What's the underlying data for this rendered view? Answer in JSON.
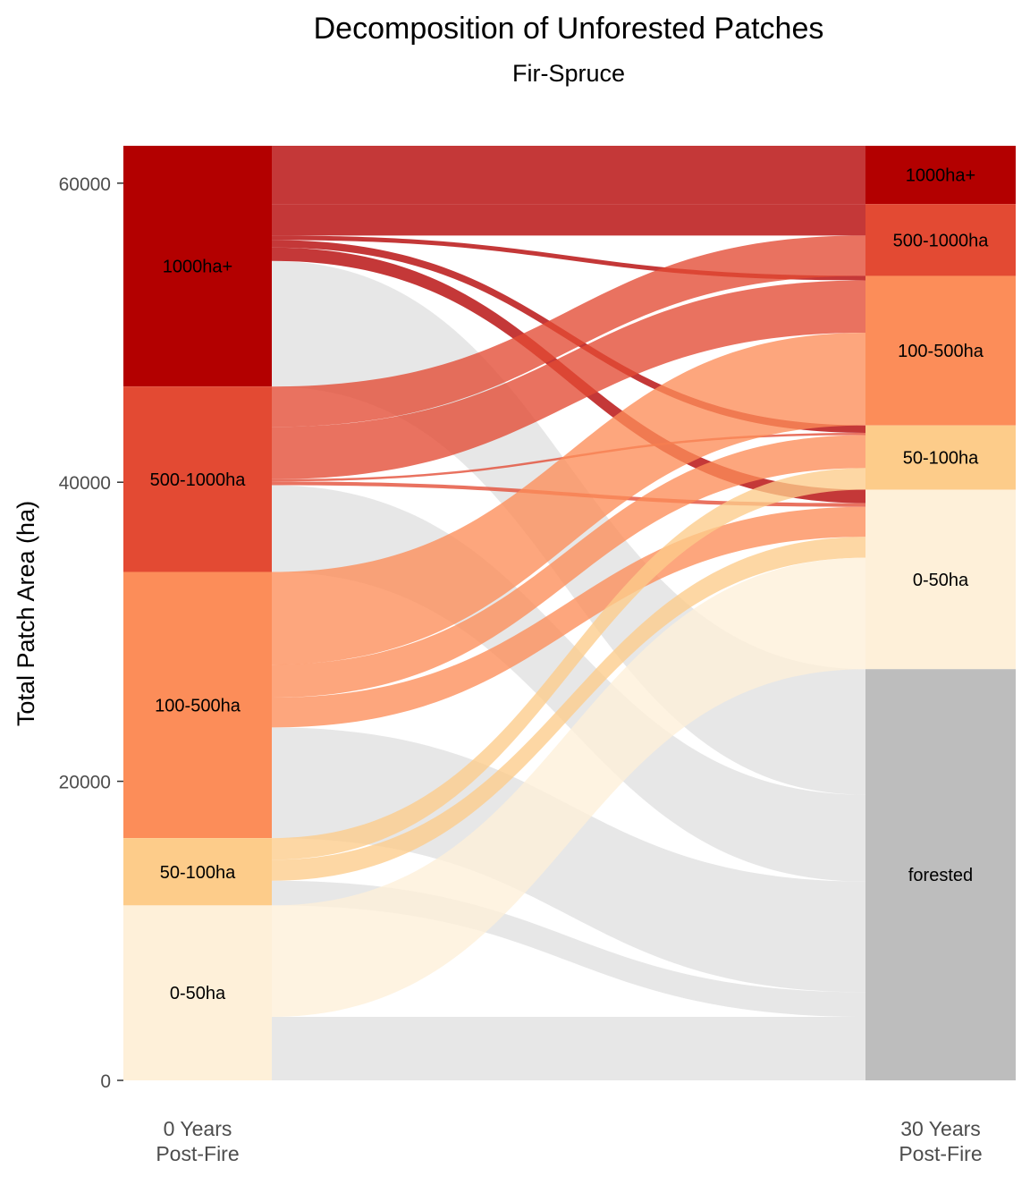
{
  "chart_data": {
    "type": "alluvial",
    "title": "Decomposition of Unforested Patches",
    "subtitle": "Fir-Spruce",
    "ylabel": "Total Patch Area (ha)",
    "xlabel": "",
    "x_categories": [
      [
        "0 Years",
        "Post-Fire"
      ],
      [
        "30 Years",
        "Post-Fire"
      ]
    ],
    "y_ticks": [
      0,
      20000,
      40000,
      60000
    ],
    "ylim": [
      0,
      62500
    ],
    "grid": false,
    "legend": "none",
    "colors": {
      "1000ha+": "#b30000",
      "500-1000ha": "#e34a33",
      "100-500ha": "#fc8d59",
      "50-100ha": "#fdcc8a",
      "0-50ha": "#fef0d9",
      "forested": "#bdbdbd",
      "flow_to_forested": "#e6e6e6"
    },
    "left_strata": [
      {
        "label": "1000ha+",
        "value": 16100
      },
      {
        "label": "500-1000ha",
        "value": 12400
      },
      {
        "label": "100-500ha",
        "value": 17800
      },
      {
        "label": "50-100ha",
        "value": 4500
      },
      {
        "label": "0-50ha",
        "value": 11700
      }
    ],
    "right_strata": [
      {
        "label": "1000ha+",
        "value": 3900
      },
      {
        "label": "500-1000ha",
        "value": 4800
      },
      {
        "label": "100-500ha",
        "value": 10000
      },
      {
        "label": "50-100ha",
        "value": 4300
      },
      {
        "label": "0-50ha",
        "value": 12000
      },
      {
        "label": "forested",
        "value": 27500
      }
    ],
    "flows": [
      {
        "from": "1000ha+",
        "to": "1000ha+",
        "value": 3900
      },
      {
        "from": "1000ha+",
        "to": "500-1000ha",
        "value": 2100
      },
      {
        "from": "1000ha+",
        "to": "100-500ha",
        "value": 300
      },
      {
        "from": "1000ha+",
        "to": "50-100ha",
        "value": 500
      },
      {
        "from": "1000ha+",
        "to": "0-50ha",
        "value": 900
      },
      {
        "from": "1000ha+",
        "to": "forested",
        "value": 8400
      },
      {
        "from": "500-1000ha",
        "to": "500-1000ha",
        "value": 2700
      },
      {
        "from": "500-1000ha",
        "to": "100-500ha",
        "value": 3500
      },
      {
        "from": "500-1000ha",
        "to": "50-100ha",
        "value": 150
      },
      {
        "from": "500-1000ha",
        "to": "0-50ha",
        "value": 250
      },
      {
        "from": "500-1000ha",
        "to": "forested",
        "value": 5800
      },
      {
        "from": "100-500ha",
        "to": "100-500ha",
        "value": 6200
      },
      {
        "from": "100-500ha",
        "to": "50-100ha",
        "value": 2200
      },
      {
        "from": "100-500ha",
        "to": "0-50ha",
        "value": 2000
      },
      {
        "from": "100-500ha",
        "to": "forested",
        "value": 7400
      },
      {
        "from": "50-100ha",
        "to": "50-100ha",
        "value": 1450
      },
      {
        "from": "50-100ha",
        "to": "0-50ha",
        "value": 1400
      },
      {
        "from": "50-100ha",
        "to": "forested",
        "value": 1650
      },
      {
        "from": "0-50ha",
        "to": "0-50ha",
        "value": 7450
      },
      {
        "from": "0-50ha",
        "to": "forested",
        "value": 4250
      }
    ]
  }
}
